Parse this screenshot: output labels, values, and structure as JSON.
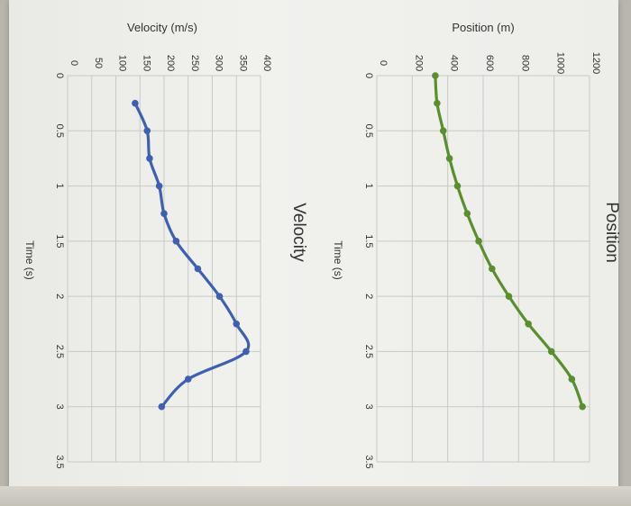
{
  "chart_data": [
    {
      "type": "line",
      "title": "Position",
      "xlabel": "Time (s)",
      "ylabel": "Position (m)",
      "xlim": [
        0,
        3.5
      ],
      "ylim": [
        0,
        1200
      ],
      "x_ticks": [
        "0",
        "0.5",
        "1",
        "1.5",
        "2",
        "2.5",
        "3",
        "3.5"
      ],
      "y_ticks": [
        "0",
        "200",
        "400",
        "600",
        "800",
        "1000",
        "1200"
      ],
      "grid": true,
      "color": "#5a8f2f",
      "series": [
        {
          "x": [
            0,
            0.25,
            0.5,
            0.75,
            1.0,
            1.25,
            1.5,
            1.75,
            2.0,
            2.25,
            2.5,
            2.75,
            3.0
          ],
          "y": [
            330,
            340,
            375,
            410,
            455,
            510,
            575,
            650,
            745,
            855,
            985,
            1100,
            1160
          ]
        }
      ]
    },
    {
      "type": "line",
      "title": "Velocity",
      "xlabel": "Time (s)",
      "ylabel": "Velocity (m/s)",
      "xlim": [
        0,
        3.5
      ],
      "ylim": [
        0,
        400
      ],
      "x_ticks": [
        "0",
        "0.5",
        "1",
        "1.5",
        "2",
        "2.5",
        "3",
        "3.5"
      ],
      "y_ticks": [
        "0",
        "50",
        "100",
        "150",
        "200",
        "250",
        "300",
        "350",
        "400"
      ],
      "grid": true,
      "color": "#3f5fb0",
      "series": [
        {
          "x": [
            0.25,
            0.5,
            0.75,
            1.0,
            1.25,
            1.5,
            1.75,
            2.0,
            2.25,
            2.5,
            2.75,
            3.0
          ],
          "y": [
            140,
            165,
            170,
            190,
            200,
            225,
            270,
            315,
            350,
            370,
            250,
            195
          ]
        }
      ]
    }
  ]
}
